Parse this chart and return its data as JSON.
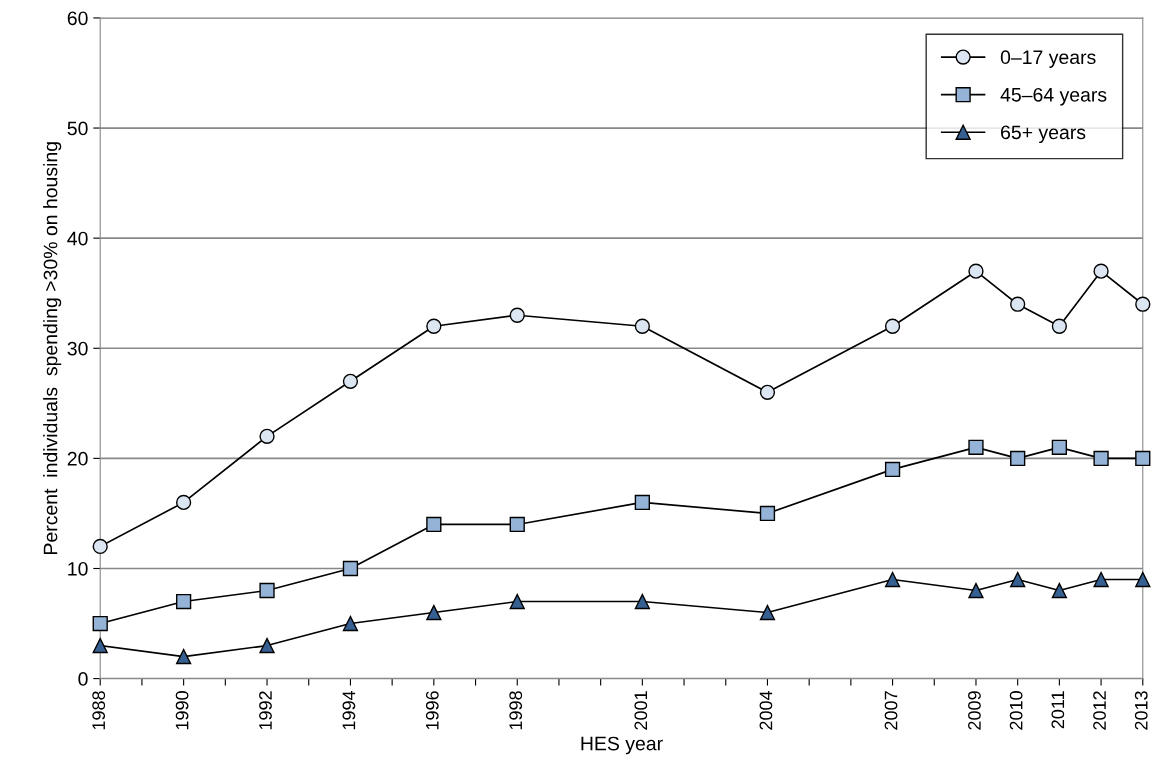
{
  "chart_data": {
    "type": "line",
    "xlabel": "HES year",
    "ylabel": "Percent  individuals  spending >30% on housing",
    "x": [
      1988,
      1990,
      1992,
      1994,
      1996,
      1998,
      2001,
      2004,
      2007,
      2009,
      2010,
      2011,
      2012,
      2013
    ],
    "series": [
      {
        "name": "0–17 years",
        "color": "#dce6f2",
        "marker": "circle",
        "values": [
          12,
          16,
          22,
          27,
          32,
          33,
          32,
          26,
          32,
          37,
          34,
          32,
          37,
          34
        ]
      },
      {
        "name": "45–64 years",
        "color": "#95b3d7",
        "marker": "square",
        "values": [
          5,
          7,
          8,
          10,
          14,
          14,
          16,
          15,
          19,
          21,
          20,
          21,
          20,
          20
        ]
      },
      {
        "name": "65+ years",
        "color": "#376092",
        "marker": "triangle",
        "values": [
          3,
          2,
          3,
          5,
          6,
          7,
          7,
          6,
          9,
          8,
          9,
          8,
          9,
          9
        ]
      }
    ],
    "xlim": [
      1988,
      2013
    ],
    "xticks": [
      1988,
      {
        "value": 1989,
        "label": null
      },
      1990,
      {
        "value": 1991,
        "label": null
      },
      1992,
      {
        "value": 1993,
        "label": null
      },
      1994,
      {
        "value": 1995,
        "label": null
      },
      1996,
      {
        "value": 1997,
        "label": null
      },
      1998,
      {
        "value": 1999,
        "label": null
      },
      {
        "value": 2000,
        "label": null
      },
      2001,
      {
        "value": 2002,
        "label": null
      },
      {
        "value": 2003,
        "label": null
      },
      2004,
      {
        "value": 2005,
        "label": null
      },
      {
        "value": 2006,
        "label": null
      },
      2007,
      {
        "value": 2008,
        "label": null
      },
      2009,
      2010,
      2011,
      2012,
      2013
    ],
    "ylim": [
      0,
      60
    ],
    "yticks": [
      0,
      10,
      20,
      30,
      40,
      50,
      60
    ],
    "grid": "y",
    "legend": "top right",
    "line_style": "solid"
  }
}
